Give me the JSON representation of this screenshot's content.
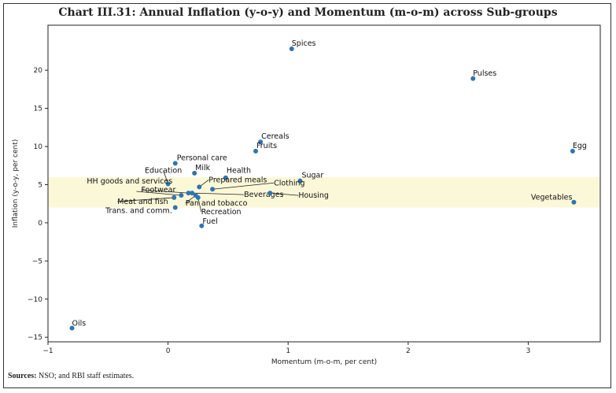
{
  "chart_data": {
    "type": "scatter",
    "title": "Chart III.31: Annual Inflation (y-o-y) and Momentum (m-o-m) across Sub-groups",
    "xlabel": "Momentum (m-o-m, per cent)",
    "ylabel": "Inflation (y-o-y, per cent)",
    "xlim": [
      -1.0,
      3.6
    ],
    "ylim": [
      -15.6,
      25.9
    ],
    "xticks": [
      -1,
      0,
      1,
      2,
      3
    ],
    "yticks": [
      -15,
      -10,
      -5,
      0,
      5,
      10,
      15,
      20
    ],
    "grid": false,
    "band": {
      "y_from": 2,
      "y_to": 6,
      "color": "#fbf8d8"
    },
    "point_color": "#2f75b0",
    "points": [
      {
        "label": "Spices",
        "x": 1.03,
        "y": 22.8
      },
      {
        "label": "Pulses",
        "x": 2.54,
        "y": 18.9
      },
      {
        "label": "Cereals",
        "x": 0.77,
        "y": 10.6
      },
      {
        "label": "Fruits",
        "x": 0.73,
        "y": 9.4
      },
      {
        "label": "Egg",
        "x": 3.37,
        "y": 9.4
      },
      {
        "label": "Personal care",
        "x": 0.06,
        "y": 7.8
      },
      {
        "label": "Milk",
        "x": 0.22,
        "y": 6.5
      },
      {
        "label": "Health",
        "x": 0.48,
        "y": 5.9
      },
      {
        "label": "Sugar",
        "x": 1.1,
        "y": 5.5
      },
      {
        "label": "Education",
        "x": 0.0,
        "y": 5.1
      },
      {
        "label": "Prepared meals",
        "x": 0.26,
        "y": 4.7
      },
      {
        "label": "Clothing",
        "x": 0.37,
        "y": 4.4
      },
      {
        "label": "HH goods and services",
        "x": 0.11,
        "y": 3.6
      },
      {
        "label": "Footwear",
        "x": 0.17,
        "y": 3.9
      },
      {
        "label": "Beverages",
        "x": 0.2,
        "y": 3.9
      },
      {
        "label": "Housing",
        "x": 0.85,
        "y": 3.9
      },
      {
        "label": "Pan and tobacco",
        "x": 0.23,
        "y": 3.6
      },
      {
        "label": "Recreation",
        "x": 0.25,
        "y": 3.3
      },
      {
        "label": "Meat and fish",
        "x": 0.05,
        "y": 3.3
      },
      {
        "label": "Vegetables",
        "x": 3.38,
        "y": 2.7
      },
      {
        "label": "Trans. and comm.",
        "x": 0.06,
        "y": 2.0
      },
      {
        "label": "Fuel",
        "x": 0.28,
        "y": -0.4
      },
      {
        "label": "Oils",
        "x": -0.8,
        "y": -13.8
      }
    ]
  },
  "source": {
    "prefix": "Sources:",
    "text": " NSO; and RBI staff estimates."
  }
}
